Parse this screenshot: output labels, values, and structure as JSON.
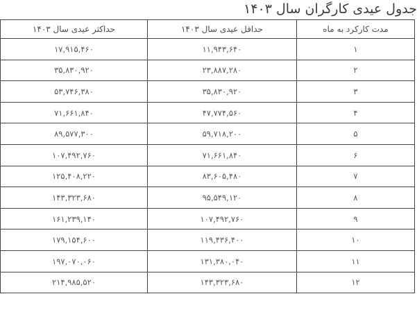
{
  "page": {
    "title": "جدول عیدی کارگران سال ۱۴۰۳"
  },
  "table": {
    "headers": {
      "months": "مدت کارکرد به ماه",
      "min": "حداقل عیدی سال ۱۴۰۳",
      "max": "حداکثر عیدی سال ۱۴۰۳"
    },
    "rows": [
      {
        "months": "۱",
        "min": "۱۱,۹۴۳,۶۴۰",
        "max": "۱۷,۹۱۵,۴۶۰"
      },
      {
        "months": "۲",
        "min": "۲۳,۸۸۷,۲۸۰",
        "max": "۳۵,۸۳۰,۹۲۰"
      },
      {
        "months": "۳",
        "min": "۳۵,۸۳۰,۹۲۰",
        "max": "۵۳,۷۴۶,۳۸۰"
      },
      {
        "months": "۴",
        "min": "۴۷,۷۷۴,۵۶۰",
        "max": "۷۱,۶۶۱,۸۴۰"
      },
      {
        "months": "۵",
        "min": "۵۹,۷۱۸,۲۰۰",
        "max": "۸۹,۵۷۷,۳۰۰"
      },
      {
        "months": "۶",
        "min": "۷۱,۶۶۱,۸۴۰",
        "max": "۱۰۷,۴۹۲,۷۶۰"
      },
      {
        "months": "۷",
        "min": "۸۳,۶۰۵,۴۸۰",
        "max": "۱۲۵,۴۰۸,۲۲۰"
      },
      {
        "months": "۸",
        "min": "۹۵,۵۴۹,۱۲۰",
        "max": "۱۴۳,۳۲۳,۶۸۰"
      },
      {
        "months": "۹",
        "min": "۱۰۷,۴۹۲,۷۶۰",
        "max": "۱۶۱,۲۳۹,۱۴۰"
      },
      {
        "months": "۱۰",
        "min": "۱۱۹,۴۳۶,۴۰۰",
        "max": "۱۷۹,۱۵۴,۶۰۰"
      },
      {
        "months": "۱۱",
        "min": "۱۳۱,۳۸۰,۰۴۰",
        "max": "۱۹۷,۰۷۰,۰۶۰"
      },
      {
        "months": "۱۲",
        "min": "۱۴۳,۳۲۳,۶۸۰",
        "max": "۲۱۴,۹۸۵,۵۲۰"
      }
    ]
  },
  "colors": {
    "border": "#454545",
    "title_text": "#3c3c3c",
    "header_text": "#4d4d4d",
    "cell_text": "#5a5a5a",
    "background": "#ffffff"
  }
}
